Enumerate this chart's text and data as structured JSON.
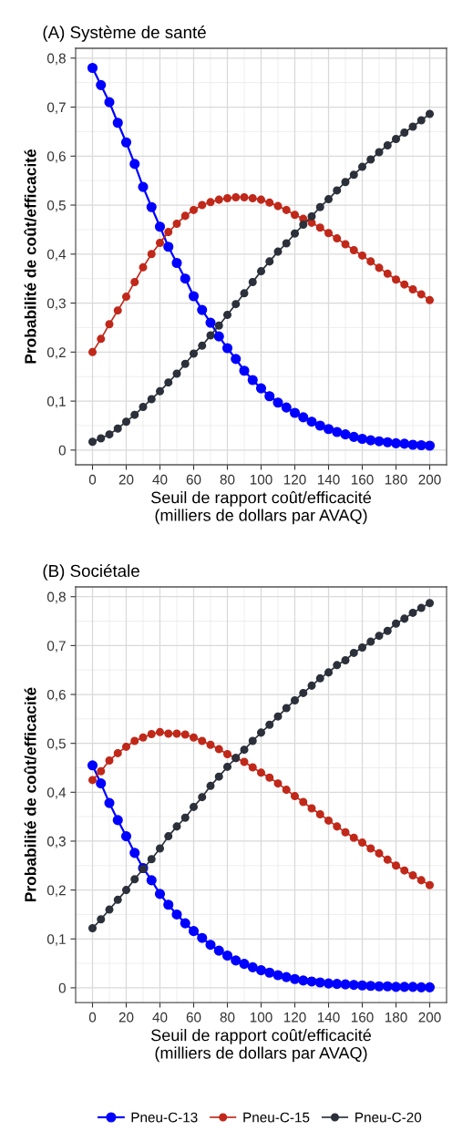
{
  "chart_data": [
    {
      "type": "line",
      "title": "(A) Système de santé",
      "xlabel": "Seuil de rapport coût/efficacité\n(milliers de dollars par AVAQ)",
      "ylabel": "Probabilité de coût/efficacité",
      "x": [
        0,
        5,
        10,
        15,
        20,
        25,
        30,
        35,
        40,
        45,
        50,
        55,
        60,
        65,
        70,
        75,
        80,
        85,
        90,
        95,
        100,
        105,
        110,
        115,
        120,
        125,
        130,
        135,
        140,
        145,
        150,
        155,
        160,
        165,
        170,
        175,
        180,
        185,
        190,
        195,
        200
      ],
      "series": [
        {
          "name": "Pneu-C-13",
          "color": "#0000ff",
          "values": [
            0.78,
            0.745,
            0.71,
            0.668,
            0.628,
            0.584,
            0.537,
            0.496,
            0.456,
            0.415,
            0.382,
            0.35,
            0.314,
            0.286,
            0.26,
            0.232,
            0.208,
            0.186,
            0.162,
            0.143,
            0.126,
            0.11,
            0.097,
            0.087,
            0.076,
            0.067,
            0.058,
            0.05,
            0.043,
            0.037,
            0.032,
            0.027,
            0.023,
            0.02,
            0.018,
            0.016,
            0.014,
            0.013,
            0.011,
            0.01,
            0.009
          ]
        },
        {
          "name": "Pneu-C-15",
          "color": "#c0281a",
          "values": [
            0.2,
            0.227,
            0.257,
            0.285,
            0.313,
            0.343,
            0.373,
            0.4,
            0.423,
            0.445,
            0.462,
            0.478,
            0.49,
            0.5,
            0.506,
            0.511,
            0.514,
            0.516,
            0.516,
            0.514,
            0.511,
            0.505,
            0.498,
            0.49,
            0.48,
            0.472,
            0.464,
            0.454,
            0.443,
            0.432,
            0.42,
            0.408,
            0.397,
            0.385,
            0.372,
            0.36,
            0.348,
            0.338,
            0.328,
            0.318,
            0.306
          ]
        },
        {
          "name": "Pneu-C-20",
          "color": "#2b303a",
          "values": [
            0.017,
            0.024,
            0.032,
            0.044,
            0.058,
            0.072,
            0.088,
            0.104,
            0.12,
            0.138,
            0.156,
            0.176,
            0.197,
            0.213,
            0.234,
            0.254,
            0.276,
            0.298,
            0.32,
            0.343,
            0.365,
            0.385,
            0.405,
            0.422,
            0.442,
            0.46,
            0.477,
            0.496,
            0.512,
            0.53,
            0.547,
            0.562,
            0.578,
            0.593,
            0.608,
            0.622,
            0.635,
            0.648,
            0.66,
            0.673,
            0.686
          ]
        }
      ],
      "xlim": [
        -10,
        210
      ],
      "xticks": [
        0,
        20,
        40,
        60,
        80,
        100,
        120,
        140,
        160,
        180,
        200
      ],
      "ylim": [
        -0.03,
        0.82
      ],
      "yticks": [
        0,
        {
          "value": 0.1,
          "label": "0,1"
        },
        {
          "value": 0.2,
          "label": "0,2"
        },
        {
          "value": 0.3,
          "label": "0,3"
        },
        {
          "value": 0.4,
          "label": "0,4"
        },
        {
          "value": 0.5,
          "label": "0,5"
        },
        {
          "value": 0.6,
          "label": "0,6"
        },
        {
          "value": 0.7,
          "label": "0,7"
        },
        {
          "value": 0.8,
          "label": "0,8"
        }
      ],
      "grid": true,
      "marker": "circle",
      "line_style": "solid",
      "legend": "bottom"
    },
    {
      "type": "line",
      "title": "(B) Sociétale",
      "xlabel": "Seuil de rapport coût/efficacité\n(milliers de dollars par AVAQ)",
      "ylabel": "Probabilité de coût/efficacité",
      "x": [
        0,
        5,
        10,
        15,
        20,
        25,
        30,
        35,
        40,
        45,
        50,
        55,
        60,
        65,
        70,
        75,
        80,
        85,
        90,
        95,
        100,
        105,
        110,
        115,
        120,
        125,
        130,
        135,
        140,
        145,
        150,
        155,
        160,
        165,
        170,
        175,
        180,
        185,
        190,
        195,
        200
      ],
      "series": [
        {
          "name": "Pneu-C-13",
          "color": "#0000ff",
          "values": [
            0.455,
            0.418,
            0.378,
            0.343,
            0.31,
            0.276,
            0.245,
            0.22,
            0.192,
            0.17,
            0.15,
            0.132,
            0.116,
            0.102,
            0.088,
            0.076,
            0.066,
            0.056,
            0.049,
            0.042,
            0.036,
            0.031,
            0.026,
            0.022,
            0.018,
            0.015,
            0.013,
            0.011,
            0.009,
            0.008,
            0.007,
            0.006,
            0.005,
            0.004,
            0.003,
            0.003,
            0.002,
            0.002,
            0.002,
            0.001,
            0.001
          ]
        },
        {
          "name": "Pneu-C-15",
          "color": "#c0281a",
          "values": [
            0.425,
            0.443,
            0.465,
            0.48,
            0.493,
            0.505,
            0.512,
            0.519,
            0.523,
            0.52,
            0.52,
            0.518,
            0.512,
            0.505,
            0.497,
            0.488,
            0.478,
            0.47,
            0.462,
            0.451,
            0.44,
            0.43,
            0.418,
            0.405,
            0.392,
            0.38,
            0.367,
            0.355,
            0.342,
            0.33,
            0.318,
            0.307,
            0.297,
            0.285,
            0.275,
            0.262,
            0.25,
            0.24,
            0.23,
            0.22,
            0.21
          ]
        },
        {
          "name": "Pneu-C-20",
          "color": "#2b303a",
          "values": [
            0.122,
            0.14,
            0.16,
            0.18,
            0.2,
            0.222,
            0.243,
            0.263,
            0.285,
            0.31,
            0.33,
            0.348,
            0.37,
            0.39,
            0.413,
            0.432,
            0.452,
            0.47,
            0.487,
            0.505,
            0.522,
            0.538,
            0.555,
            0.572,
            0.588,
            0.603,
            0.618,
            0.633,
            0.645,
            0.66,
            0.67,
            0.685,
            0.696,
            0.708,
            0.72,
            0.73,
            0.745,
            0.755,
            0.767,
            0.777,
            0.787
          ]
        }
      ],
      "xlim": [
        -10,
        210
      ],
      "xticks": [
        0,
        20,
        40,
        60,
        80,
        100,
        120,
        140,
        160,
        180,
        200
      ],
      "ylim": [
        -0.03,
        0.82
      ],
      "yticks": [
        0,
        {
          "value": 0.1,
          "label": "0,1"
        },
        {
          "value": 0.2,
          "label": "0,2"
        },
        {
          "value": 0.3,
          "label": "0,3"
        },
        {
          "value": 0.4,
          "label": "0,4"
        },
        {
          "value": 0.5,
          "label": "0,5"
        },
        {
          "value": 0.6,
          "label": "0,6"
        },
        {
          "value": 0.7,
          "label": "0,7"
        },
        {
          "value": 0.8,
          "label": "0,8"
        }
      ],
      "grid": true,
      "marker": "circle",
      "line_style": "solid",
      "legend": "bottom"
    }
  ]
}
